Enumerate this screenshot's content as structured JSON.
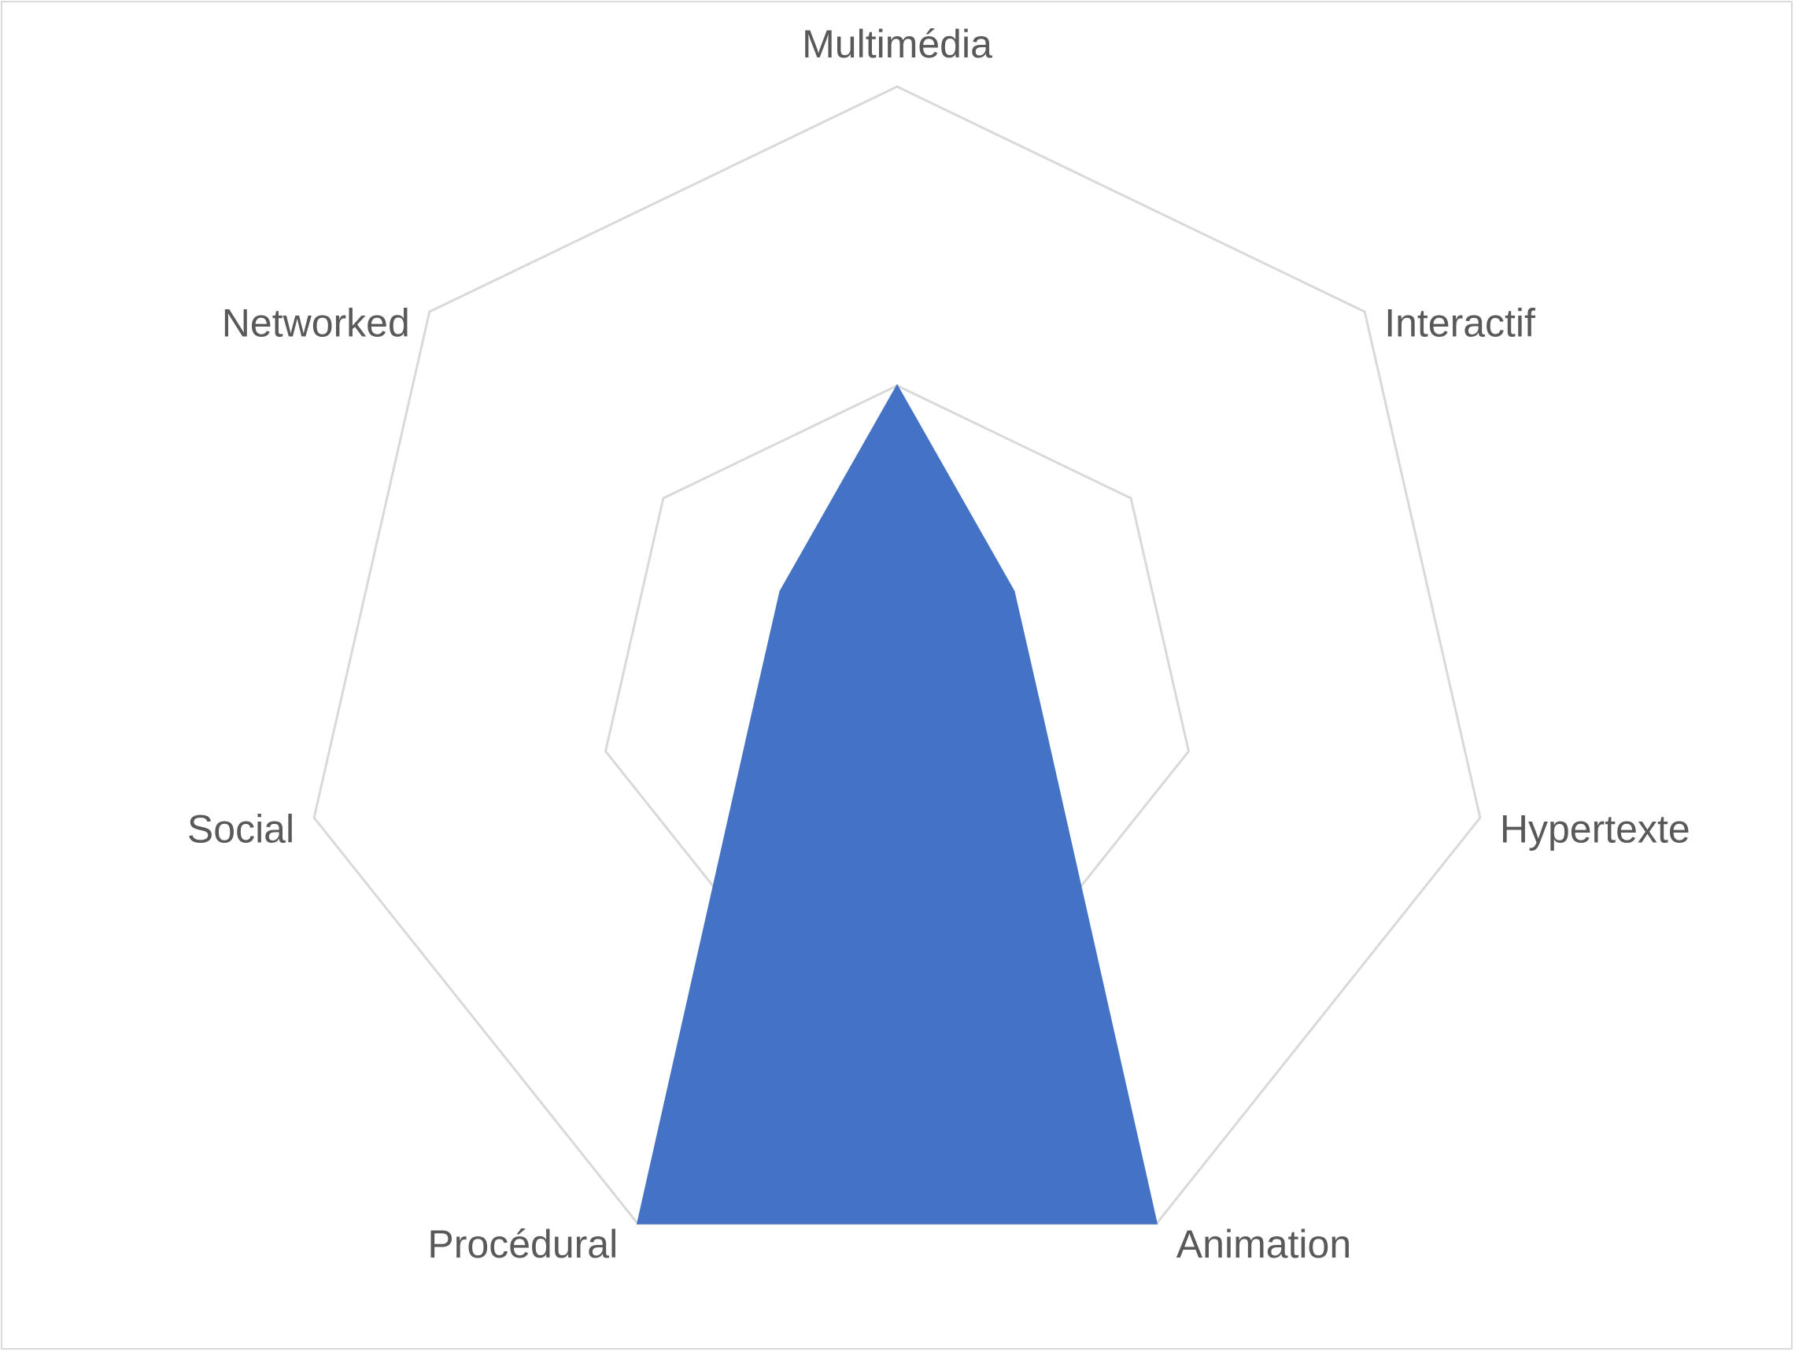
{
  "chart_data": {
    "type": "radar",
    "title": "",
    "categories": [
      "Multimédia",
      "Interactif",
      "Hypertexte",
      "Animation",
      "Procédural",
      "Social",
      "Networked"
    ],
    "series": [
      {
        "values": [
          2,
          1,
          1,
          4,
          4,
          1,
          1
        ],
        "color": "#4472c4"
      }
    ],
    "rlim": [
      0,
      4
    ],
    "grid_rings": [
      2,
      4
    ],
    "gridline_color": "#d9d9d9",
    "label_color": "#595959",
    "legend": "none"
  }
}
